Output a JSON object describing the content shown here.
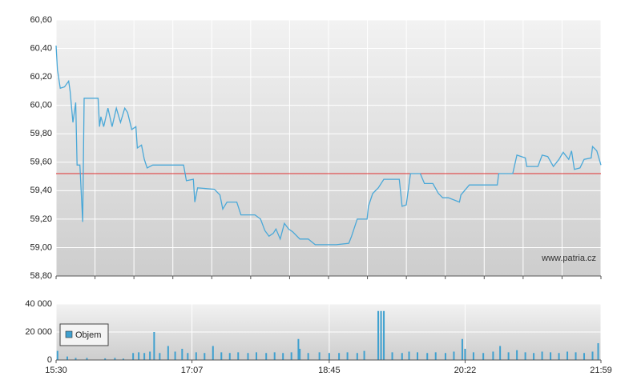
{
  "chart_data": [
    {
      "type": "line",
      "color": "#4aa8d8",
      "source": "www.patria.cz",
      "reference_value": 59.52,
      "reference_color": "#e03030",
      "xlim": [
        "15:30",
        "21:59"
      ],
      "ylim": [
        58.8,
        60.6
      ],
      "yticks": [
        {
          "value": 58.8,
          "label": "58,80"
        },
        {
          "value": 59.0,
          "label": "59,00"
        },
        {
          "value": 59.2,
          "label": "59,20"
        },
        {
          "value": 59.4,
          "label": "59,40"
        },
        {
          "value": 59.6,
          "label": "59,60"
        },
        {
          "value": 59.8,
          "label": "59,80"
        },
        {
          "value": 60.0,
          "label": "60,00"
        },
        {
          "value": 60.2,
          "label": "60,20"
        },
        {
          "value": 60.4,
          "label": "60,40"
        },
        {
          "value": 60.6,
          "label": "60,60"
        }
      ],
      "grid": true,
      "x": [
        "15:30",
        "15:31",
        "15:33",
        "15:36",
        "15:39",
        "15:40",
        "15:42",
        "15:44",
        "15:45",
        "15:47",
        "15:49",
        "15:50",
        "16:00",
        "16:01",
        "16:02",
        "16:04",
        "16:07",
        "16:10",
        "16:13",
        "16:16",
        "16:19",
        "16:21",
        "16:24",
        "16:27",
        "16:28",
        "16:31",
        "16:33",
        "16:35",
        "16:39",
        "17:01",
        "17:03",
        "17:08",
        "17:09",
        "17:11",
        "17:23",
        "17:27",
        "17:29",
        "17:32",
        "17:39",
        "17:42",
        "17:52",
        "17:56",
        "17:59",
        "18:02",
        "18:05",
        "18:07",
        "18:10",
        "18:13",
        "18:16",
        "18:19",
        "18:24",
        "18:30",
        "18:35",
        "18:50",
        "18:59",
        "19:01",
        "19:05",
        "19:12",
        "19:13",
        "19:16",
        "19:20",
        "19:24",
        "19:35",
        "19:37",
        "19:40",
        "19:43",
        "19:50",
        "19:53",
        "19:59",
        "20:03",
        "20:06",
        "20:10",
        "20:18",
        "20:19",
        "20:25",
        "20:45",
        "20:46",
        "20:56",
        "20:59",
        "21:05",
        "21:06",
        "21:14",
        "21:17",
        "21:21",
        "21:25",
        "21:29",
        "21:32",
        "21:36",
        "21:38",
        "21:40",
        "21:44",
        "21:47",
        "21:52",
        "21:53",
        "21:56",
        "21:59"
      ],
      "values": [
        60.42,
        60.25,
        60.12,
        60.13,
        60.17,
        60.1,
        59.88,
        60.02,
        59.58,
        59.58,
        59.18,
        60.05,
        60.05,
        59.85,
        59.92,
        59.85,
        59.98,
        59.85,
        59.98,
        59.88,
        59.98,
        59.95,
        59.83,
        59.85,
        59.7,
        59.72,
        59.62,
        59.56,
        59.58,
        59.58,
        59.47,
        59.48,
        59.32,
        59.42,
        59.41,
        59.37,
        59.27,
        59.32,
        59.32,
        59.23,
        59.23,
        59.2,
        59.12,
        59.08,
        59.1,
        59.13,
        59.06,
        59.17,
        59.13,
        59.11,
        59.06,
        59.06,
        59.02,
        59.02,
        59.03,
        59.08,
        59.2,
        59.2,
        59.29,
        59.38,
        59.42,
        59.48,
        59.48,
        59.29,
        59.3,
        59.52,
        59.52,
        59.45,
        59.45,
        59.38,
        59.35,
        59.35,
        59.32,
        59.37,
        59.44,
        59.44,
        59.52,
        59.52,
        59.65,
        59.63,
        59.57,
        59.57,
        59.65,
        59.64,
        59.57,
        59.62,
        59.67,
        59.62,
        59.68,
        59.55,
        59.56,
        59.62,
        59.63,
        59.71,
        59.68,
        59.58
      ]
    },
    {
      "type": "bar",
      "xlim": [
        "15:30",
        "21:59"
      ],
      "xticks": [
        "15:30",
        "17:07",
        "18:45",
        "20:22",
        "21:59"
      ],
      "ylim": [
        0,
        40000
      ],
      "yticks": [
        0,
        {
          "value": 20000,
          "label": "20 000"
        },
        {
          "value": 40000,
          "label": "40 000"
        }
      ],
      "grid": true,
      "x": [
        "15:31",
        "15:38",
        "15:44",
        "15:52",
        "16:05",
        "16:12",
        "16:18",
        "16:25",
        "16:29",
        "16:33",
        "16:37",
        "16:40",
        "16:44",
        "16:50",
        "16:55",
        "17:00",
        "17:04",
        "17:10",
        "17:16",
        "17:22",
        "17:28",
        "17:34",
        "17:40",
        "17:47",
        "17:53",
        "18:00",
        "18:06",
        "18:12",
        "18:18",
        "18:23",
        "18:24",
        "18:30",
        "18:38",
        "18:45",
        "18:52",
        "18:58",
        "19:05",
        "19:10",
        "19:20",
        "19:22",
        "19:24",
        "19:30",
        "19:37",
        "19:42",
        "19:48",
        "19:55",
        "20:01",
        "20:08",
        "20:14",
        "20:20",
        "20:22",
        "20:28",
        "20:35",
        "20:42",
        "20:47",
        "20:53",
        "20:59",
        "21:05",
        "21:11",
        "21:17",
        "21:23",
        "21:29",
        "21:35",
        "21:41",
        "21:47",
        "21:53",
        "21:57"
      ],
      "series": [
        {
          "name": "Objem",
          "color": "#3fa0cf",
          "values": [
            6500,
            2500,
            1500,
            1500,
            1200,
            1500,
            1000,
            5000,
            5500,
            5000,
            6000,
            20000,
            5000,
            10000,
            6000,
            8000,
            5000,
            5500,
            5000,
            10000,
            5500,
            5000,
            5500,
            5000,
            5500,
            5000,
            5500,
            5000,
            5500,
            15000,
            8000,
            5000,
            5500,
            5000,
            5000,
            5500,
            5000,
            6500,
            35000,
            35000,
            35000,
            5500,
            5000,
            6000,
            5500,
            5000,
            5500,
            5000,
            6000,
            15000,
            8000,
            5500,
            5000,
            6000,
            10000,
            5500,
            7000,
            5500,
            5000,
            6000,
            5500,
            5000,
            6000,
            5500,
            5000,
            6000,
            12000
          ]
        }
      ]
    }
  ]
}
